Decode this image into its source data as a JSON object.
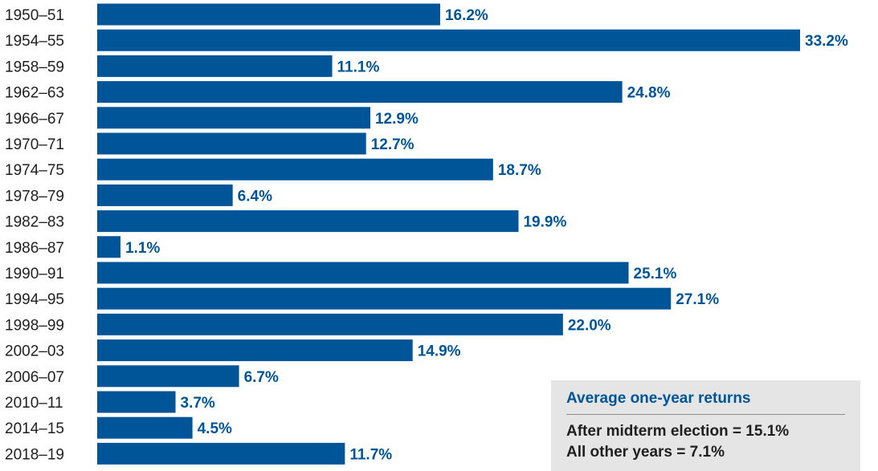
{
  "chart_data": {
    "type": "bar",
    "orientation": "horizontal",
    "categories": [
      "1950–51",
      "1954–55",
      "1958–59",
      "1962–63",
      "1966–67",
      "1970–71",
      "1974–75",
      "1978–79",
      "1982–83",
      "1986–87",
      "1990–91",
      "1994–95",
      "1998–99",
      "2002–03",
      "2006–07",
      "2010–11",
      "2014–15",
      "2018–19"
    ],
    "values": [
      16.2,
      33.2,
      11.1,
      24.8,
      12.9,
      12.7,
      18.7,
      6.4,
      19.9,
      1.1,
      25.1,
      27.1,
      22.0,
      14.9,
      6.7,
      3.7,
      4.5,
      11.7
    ],
    "value_labels": [
      "16.2%",
      "33.2%",
      "11.1%",
      "24.8%",
      "12.9%",
      "12.7%",
      "18.7%",
      "6.4%",
      "19.9%",
      "1.1%",
      "25.1%",
      "27.1%",
      "22.0%",
      "14.9%",
      "6.7%",
      "3.7%",
      "4.5%",
      "11.7%"
    ],
    "xlim": [
      0,
      33.2
    ],
    "grid": false,
    "bar_color": "#005599",
    "label_color": "#005599"
  },
  "legend_box": {
    "title": "Average one-year returns",
    "lines": [
      "After midterm election = 15.1%",
      "All other years = 7.1%"
    ],
    "background": "#e5e5e5"
  }
}
